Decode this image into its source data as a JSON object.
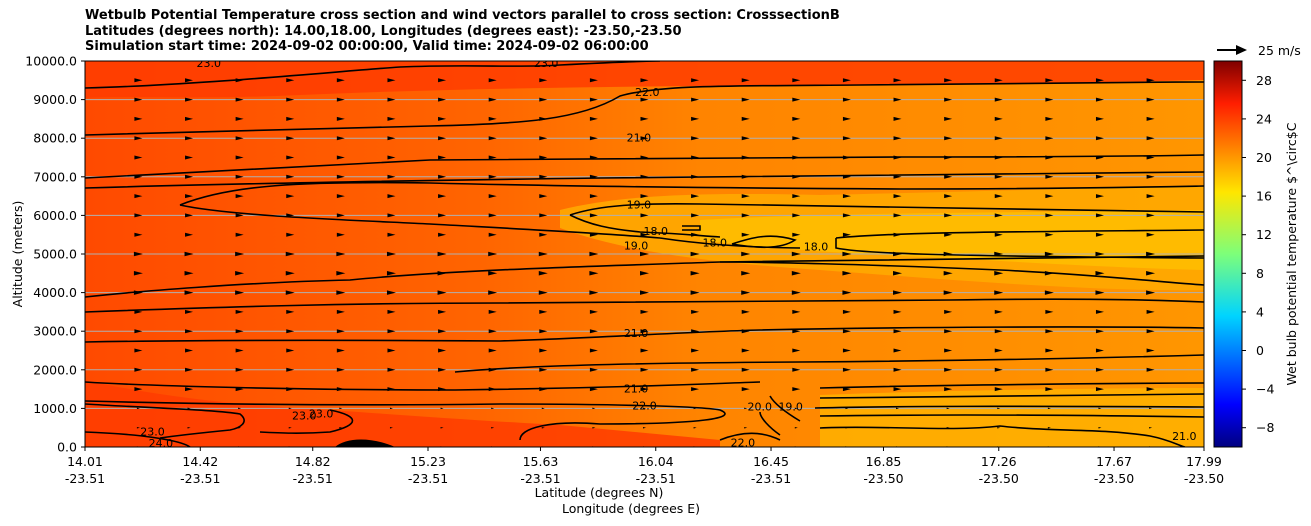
{
  "title": {
    "line1": "Wetbulb Potential Temperature cross section and wind vectors parallel to cross section: CrosssectionB",
    "line2": "Latitudes (degrees north): 14.00,18.00, Longitudes (degrees east): -23.50,-23.50",
    "line3": "Simulation start time: 2024-09-02 00:00:00, Valid time: 2024-09-02 06:00:00"
  },
  "chart_data": {
    "type": "heatmap",
    "ylabel": "Altitude (meters)",
    "xlabel_1": "Latitude (degrees N)",
    "xlabel_2": "Longitude (degrees E)",
    "ylim": [
      0,
      10000
    ],
    "xlim": [
      14.01,
      17.99
    ],
    "y_ticks": [
      "0.0",
      "1000.0",
      "2000.0",
      "3000.0",
      "4000.0",
      "5000.0",
      "6000.0",
      "7000.0",
      "8000.0",
      "9000.0",
      "10000.0"
    ],
    "x_ticks": [
      {
        "lat": "14.01",
        "lon": "-23.51"
      },
      {
        "lat": "14.42",
        "lon": "-23.51"
      },
      {
        "lat": "14.82",
        "lon": "-23.51"
      },
      {
        "lat": "15.23",
        "lon": "-23.51"
      },
      {
        "lat": "15.63",
        "lon": "-23.51"
      },
      {
        "lat": "16.04",
        "lon": "-23.51"
      },
      {
        "lat": "16.45",
        "lon": "-23.51"
      },
      {
        "lat": "16.85",
        "lon": "-23.50"
      },
      {
        "lat": "17.26",
        "lon": "-23.50"
      },
      {
        "lat": "17.67",
        "lon": "-23.50"
      },
      {
        "lat": "17.99",
        "lon": "-23.50"
      }
    ],
    "grid": "horizontal",
    "colorbar": {
      "label": "Wet bulb potential temperature $^\\circ$C",
      "ticks": [
        "-8",
        "-4",
        "0",
        "4",
        "8",
        "12",
        "16",
        "20",
        "24",
        "28"
      ],
      "range": [
        -10,
        30
      ],
      "colormap": "jet"
    },
    "quiver_key": {
      "label": "25 m/s",
      "speed": 25
    },
    "contour_labels": [
      {
        "text": "23.0",
        "lat": 14.45,
        "alt": 9950
      },
      {
        "text": "23.0",
        "lat": 15.65,
        "alt": 9950
      },
      {
        "text": "22.0",
        "lat": 16.01,
        "alt": 9200
      },
      {
        "text": "21.0",
        "lat": 15.98,
        "alt": 8020
      },
      {
        "text": "19.0",
        "lat": 15.98,
        "alt": 6280
      },
      {
        "text": "19.0",
        "lat": 15.97,
        "alt": 5220
      },
      {
        "text": "18.0",
        "lat": 16.04,
        "alt": 5600
      },
      {
        "text": "18.0",
        "lat": 16.25,
        "alt": 5300
      },
      {
        "text": "18.0",
        "lat": 16.61,
        "alt": 5200
      },
      {
        "text": "21.0",
        "lat": 15.97,
        "alt": 2950
      },
      {
        "text": "21.0",
        "lat": 15.97,
        "alt": 1520
      },
      {
        "text": "22.0",
        "lat": 16.0,
        "alt": 1080
      },
      {
        "text": "23.0",
        "lat": 14.79,
        "alt": 820
      },
      {
        "text": "23.0",
        "lat": 14.85,
        "alt": 870
      },
      {
        "text": "23.0",
        "lat": 14.25,
        "alt": 400
      },
      {
        "text": "24.0",
        "lat": 14.28,
        "alt": 100
      },
      {
        "text": "20.0",
        "lat": 16.41,
        "alt": 1050
      },
      {
        "text": "19.0",
        "lat": 16.52,
        "alt": 1050
      },
      {
        "text": "22.0",
        "lat": 16.35,
        "alt": 120
      },
      {
        "text": "21.0",
        "lat": 17.92,
        "alt": 280
      }
    ]
  }
}
